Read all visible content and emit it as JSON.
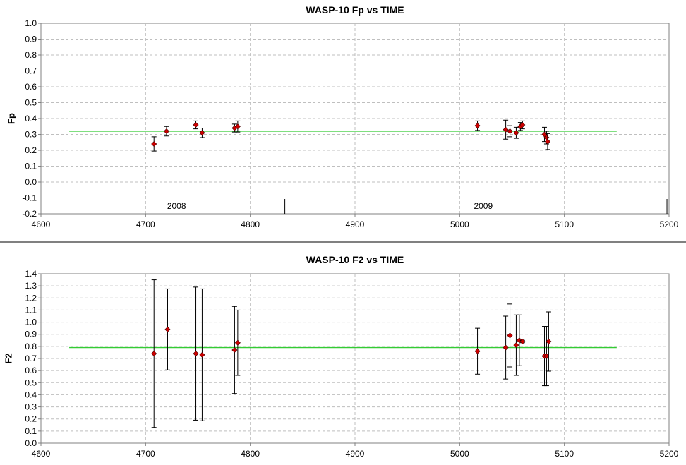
{
  "chart_data": [
    {
      "type": "scatter",
      "title": "WASP-10 Fp vs TIME",
      "xlabel": "",
      "ylabel": "Fp",
      "xlim": [
        4600,
        5200
      ],
      "ylim": [
        -0.2,
        1.0
      ],
      "xticks": [
        "4600",
        "4700",
        "4800",
        "4900",
        "5000",
        "5100",
        "5200"
      ],
      "yticks": [
        "1.0",
        "0.9",
        "0.8",
        "0.7",
        "0.6",
        "0.5",
        "0.4",
        "0.3",
        "0.2",
        "0.1",
        "0.0",
        "-0.1",
        "-0.2"
      ],
      "grid": true,
      "fit_line": {
        "y": 0.32,
        "x_range": [
          4627,
          5150
        ],
        "color": "#33cc33"
      },
      "year_labels": [
        {
          "label": "2008",
          "x": 4730
        },
        {
          "label": "2009",
          "x": 5023
        }
      ],
      "year_markers": [
        4833,
        5198
      ],
      "points": [
        {
          "x": 4708,
          "y": 0.24,
          "err": 0.045
        },
        {
          "x": 4720,
          "y": 0.32,
          "err": 0.03
        },
        {
          "x": 4748,
          "y": 0.36,
          "err": 0.025
        },
        {
          "x": 4754,
          "y": 0.31,
          "err": 0.03
        },
        {
          "x": 4785,
          "y": 0.34,
          "err": 0.025
        },
        {
          "x": 4788,
          "y": 0.35,
          "err": 0.035
        },
        {
          "x": 5017,
          "y": 0.355,
          "err": 0.03
        },
        {
          "x": 5044,
          "y": 0.33,
          "err": 0.06
        },
        {
          "x": 5048,
          "y": 0.32,
          "err": 0.035
        },
        {
          "x": 5054,
          "y": 0.31,
          "err": 0.035
        },
        {
          "x": 5058,
          "y": 0.35,
          "err": 0.025
        },
        {
          "x": 5060,
          "y": 0.36,
          "err": 0.025
        },
        {
          "x": 5081,
          "y": 0.3,
          "err": 0.045
        },
        {
          "x": 5083,
          "y": 0.28,
          "err": 0.04
        },
        {
          "x": 5084,
          "y": 0.255,
          "err": 0.05
        }
      ]
    },
    {
      "type": "scatter",
      "title": "WASP-10 F2 vs TIME",
      "xlabel": "",
      "ylabel": "F2",
      "xlim": [
        4600,
        5200
      ],
      "ylim": [
        0.0,
        1.4
      ],
      "xticks": [
        "4600",
        "4700",
        "4800",
        "4900",
        "5000",
        "5100",
        "5200"
      ],
      "yticks": [
        "1.4",
        "1.3",
        "1.2",
        "1.1",
        "1.0",
        "0.9",
        "0.8",
        "0.7",
        "0.6",
        "0.5",
        "0.4",
        "0.3",
        "0.2",
        "0.1",
        "0.0"
      ],
      "grid": true,
      "fit_line": {
        "y": 0.79,
        "x_range": [
          4627,
          5150
        ],
        "color": "#33cc33"
      },
      "points": [
        {
          "x": 4708,
          "y": 0.74,
          "err": 0.61
        },
        {
          "x": 4721,
          "y": 0.94,
          "err": 0.335
        },
        {
          "x": 4748,
          "y": 0.74,
          "err": 0.55
        },
        {
          "x": 4754,
          "y": 0.73,
          "err": 0.545
        },
        {
          "x": 4785,
          "y": 0.77,
          "err": 0.36
        },
        {
          "x": 4788,
          "y": 0.83,
          "err": 0.27
        },
        {
          "x": 5017,
          "y": 0.76,
          "err": 0.19
        },
        {
          "x": 5044,
          "y": 0.79,
          "err": 0.26
        },
        {
          "x": 5048,
          "y": 0.89,
          "err": 0.26
        },
        {
          "x": 5054,
          "y": 0.81,
          "err": 0.25
        },
        {
          "x": 5057,
          "y": 0.85,
          "err": 0.21
        },
        {
          "x": 5060,
          "y": 0.84,
          "err": 0.01
        },
        {
          "x": 5081,
          "y": 0.72,
          "err": 0.245
        },
        {
          "x": 5083,
          "y": 0.72,
          "err": 0.245
        },
        {
          "x": 5085,
          "y": 0.84,
          "err": 0.245
        }
      ]
    }
  ]
}
